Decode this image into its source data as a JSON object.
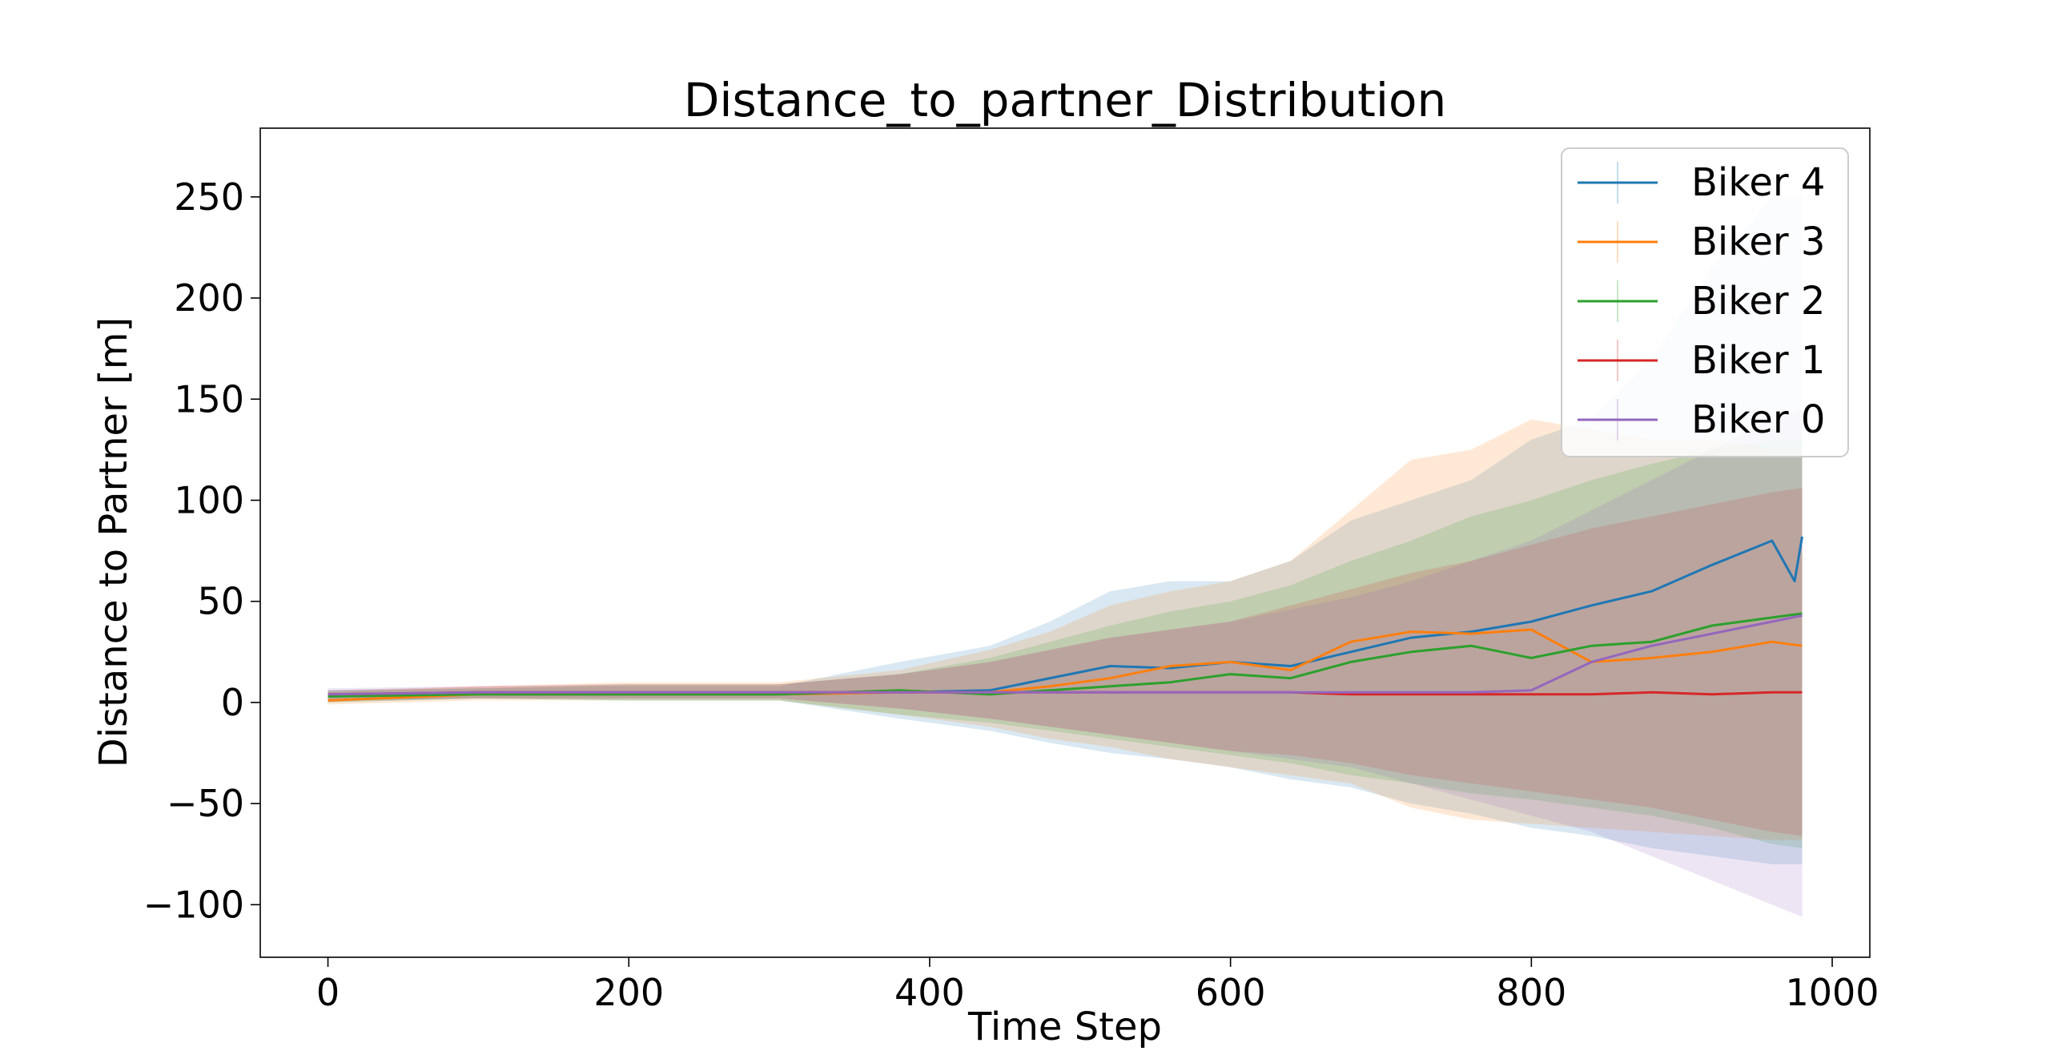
{
  "chart_data": {
    "type": "line",
    "title": "Distance_to_partner_Distribution",
    "xlabel": "Time Step",
    "ylabel": "Distance to Partner [m]",
    "xlim": [
      -45,
      1025
    ],
    "ylim": [
      -126,
      284
    ],
    "xticks": [
      0,
      200,
      400,
      600,
      800,
      1000
    ],
    "xtick_labels": [
      "0",
      "200",
      "400",
      "600",
      "800",
      "1000"
    ],
    "yticks": [
      -100,
      -50,
      0,
      50,
      100,
      150,
      200,
      250
    ],
    "ytick_labels": [
      "−100",
      "−50",
      "0",
      "50",
      "100",
      "150",
      "200",
      "250"
    ],
    "grid": false,
    "legend_position": "top-right",
    "series": [
      {
        "name": "Biker 4",
        "color": "#1f77b4",
        "x": [
          0,
          100,
          200,
          300,
          380,
          440,
          480,
          520,
          560,
          600,
          640,
          680,
          720,
          760,
          800,
          840,
          880,
          920,
          960,
          975,
          980
        ],
        "values": [
          3,
          4,
          4,
          4,
          5,
          6,
          12,
          18,
          17,
          20,
          18,
          25,
          32,
          35,
          40,
          48,
          55,
          68,
          80,
          60,
          82
        ],
        "band_low": [
          0,
          2,
          1,
          1,
          -8,
          -14,
          -20,
          -25,
          -28,
          -32,
          -38,
          -42,
          -50,
          -55,
          -62,
          -66,
          -72,
          -76,
          -80,
          -80,
          -80
        ],
        "band_high": [
          6,
          7,
          8,
          8,
          20,
          28,
          40,
          55,
          60,
          60,
          70,
          90,
          100,
          110,
          130,
          140,
          170,
          215,
          250,
          250,
          250
        ]
      },
      {
        "name": "Biker 3",
        "color": "#ff7f0e",
        "x": [
          0,
          100,
          200,
          300,
          380,
          440,
          480,
          520,
          560,
          600,
          640,
          680,
          720,
          760,
          800,
          840,
          880,
          920,
          960,
          980
        ],
        "values": [
          1,
          4,
          4,
          4,
          5,
          5,
          8,
          12,
          18,
          20,
          16,
          30,
          35,
          34,
          36,
          20,
          22,
          25,
          30,
          28
        ],
        "band_low": [
          -1,
          1,
          1,
          1,
          -6,
          -12,
          -18,
          -22,
          -28,
          -32,
          -36,
          -40,
          -52,
          -58,
          -60,
          -62,
          -64,
          -66,
          -68,
          -68
        ],
        "band_high": [
          5,
          8,
          10,
          10,
          16,
          26,
          35,
          48,
          55,
          60,
          70,
          95,
          120,
          125,
          140,
          135,
          130,
          130,
          125,
          125
        ]
      },
      {
        "name": "Biker 2",
        "color": "#2ca02c",
        "x": [
          0,
          100,
          200,
          300,
          380,
          440,
          480,
          520,
          560,
          600,
          640,
          680,
          720,
          760,
          800,
          840,
          880,
          920,
          960,
          980
        ],
        "values": [
          3,
          4,
          4,
          4,
          6,
          4,
          6,
          8,
          10,
          14,
          12,
          20,
          25,
          28,
          22,
          28,
          30,
          38,
          42,
          44
        ],
        "band_low": [
          0,
          2,
          1,
          1,
          -6,
          -10,
          -14,
          -18,
          -22,
          -26,
          -30,
          -36,
          -40,
          -45,
          -48,
          -52,
          -56,
          -62,
          -70,
          -72
        ],
        "band_high": [
          6,
          7,
          9,
          9,
          14,
          22,
          30,
          38,
          45,
          50,
          58,
          70,
          80,
          92,
          100,
          110,
          118,
          125,
          130,
          130
        ]
      },
      {
        "name": "Biker 1",
        "color": "#d62728",
        "x": [
          0,
          100,
          200,
          300,
          380,
          440,
          480,
          520,
          560,
          600,
          640,
          680,
          720,
          760,
          800,
          840,
          880,
          920,
          960,
          980
        ],
        "values": [
          4,
          5,
          5,
          5,
          5,
          5,
          5,
          5,
          5,
          5,
          5,
          4,
          4,
          4,
          4,
          4,
          5,
          4,
          5,
          5
        ],
        "band_low": [
          1,
          2,
          2,
          2,
          -3,
          -8,
          -12,
          -16,
          -20,
          -24,
          -26,
          -30,
          -36,
          -40,
          -44,
          -48,
          -52,
          -58,
          -64,
          -66
        ],
        "band_high": [
          6,
          8,
          9,
          9,
          14,
          20,
          26,
          32,
          36,
          40,
          48,
          56,
          64,
          70,
          78,
          86,
          92,
          98,
          104,
          106
        ]
      },
      {
        "name": "Biker 0",
        "color": "#9467bd",
        "x": [
          0,
          100,
          200,
          300,
          380,
          440,
          480,
          520,
          560,
          600,
          640,
          680,
          720,
          760,
          800,
          840,
          880,
          920,
          960,
          980
        ],
        "values": [
          4,
          5,
          5,
          5,
          5,
          5,
          5,
          5,
          5,
          5,
          5,
          5,
          5,
          5,
          6,
          20,
          28,
          34,
          40,
          43
        ],
        "band_low": [
          1,
          2,
          2,
          2,
          -3,
          -8,
          -12,
          -16,
          -20,
          -24,
          -28,
          -32,
          -40,
          -48,
          -56,
          -64,
          -76,
          -88,
          -100,
          -106
        ],
        "band_high": [
          7,
          8,
          9,
          9,
          14,
          20,
          26,
          32,
          36,
          40,
          46,
          52,
          60,
          70,
          80,
          95,
          110,
          125,
          140,
          145
        ]
      }
    ]
  }
}
